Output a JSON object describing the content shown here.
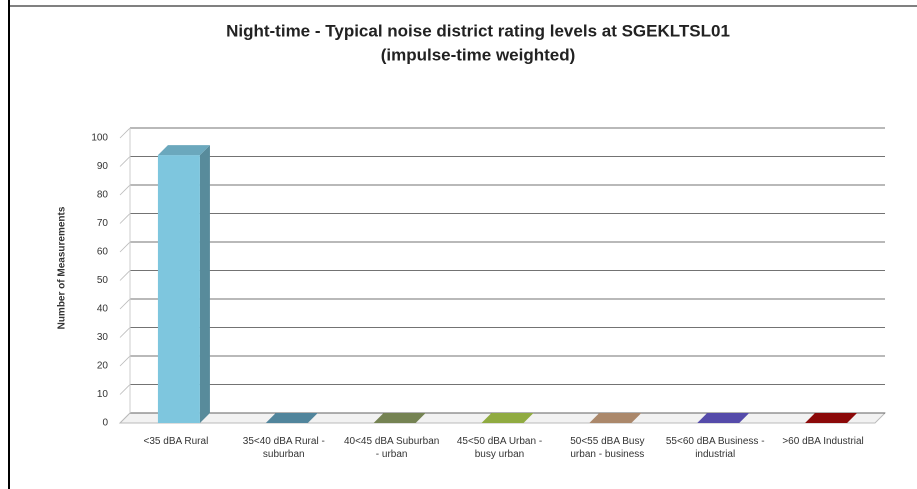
{
  "chart_data": {
    "type": "bar3d",
    "title": "Night-time - Typical noise district rating levels at SGEKLTSL01",
    "subtitle": "(impulse-time weighted)",
    "y_label": "Number of Measurements",
    "categories": [
      "<35 dBA Rural",
      "35<40 dBA Rural - suburban",
      "40<45 dBA Suburban - urban",
      "45<50 dBA Urban - busy urban",
      "50<55 dBA Busy urban - business",
      "55<60 dBA Business - industrial",
      ">60 dBA Industrial"
    ],
    "values": [
      94,
      0,
      0,
      0,
      0,
      0,
      0
    ],
    "colors": [
      "#7ec6de",
      "#5f9db8",
      "#8a9a62",
      "#a9c94c",
      "#c9a07e",
      "#6458c8",
      "#a30a0a"
    ],
    "ylim": [
      0,
      100
    ],
    "yticks": [
      0,
      10,
      20,
      30,
      40,
      50,
      60,
      70,
      80,
      90,
      100
    ],
    "grid": true
  }
}
